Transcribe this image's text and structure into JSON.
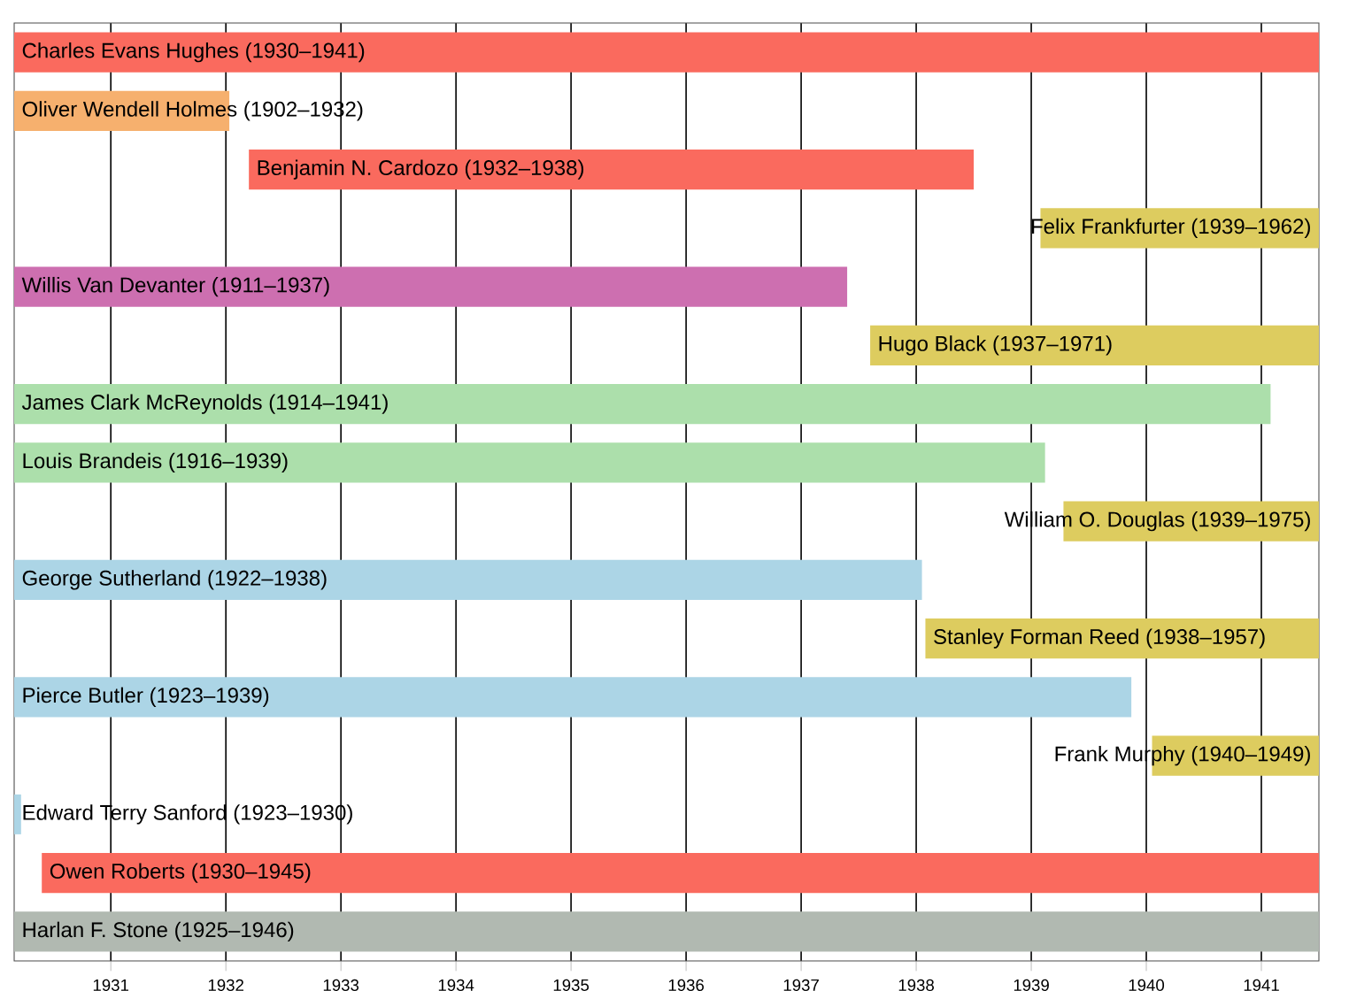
{
  "chart_data": {
    "type": "bar",
    "orientation": "horizontal",
    "categories": [
      "Charles Evans Hughes (1930–1941)",
      "Oliver Wendell Holmes (1902–1932)",
      "Benjamin N. Cardozo (1932–1938)",
      "Felix Frankfurter (1939–1962)",
      "Willis Van Devanter (1911–1937)",
      "Hugo Black (1937–1971)",
      "James Clark McReynolds (1914–1941)",
      "Louis Brandeis (1916–1939)",
      "William O. Douglas (1939–1975)",
      "George Sutherland (1922–1938)",
      "Stanley Forman Reed (1938–1957)",
      "Pierce Butler (1923–1939)",
      "Frank Murphy (1940–1949)",
      "Edward Terry Sanford (1923–1930)",
      "Owen Roberts (1930–1945)",
      "Harlan F. Stone (1925–1946)"
    ],
    "base": [
      1930.16,
      1930.16,
      1932.2,
      1939.08,
      1930.16,
      1937.6,
      1930.16,
      1930.16,
      1939.28,
      1930.16,
      1938.08,
      1930.16,
      1940.05,
      1930.16,
      1930.4,
      1930.16
    ],
    "values": [
      11.34,
      1.87,
      6.3,
      2.42,
      7.24,
      3.9,
      10.92,
      8.96,
      2.22,
      7.89,
      3.42,
      9.71,
      1.45,
      0.06,
      11.1,
      11.34
    ],
    "colors": [
      "#fa6a5e",
      "#f6b06e",
      "#fa6a5e",
      "#ddcc5f",
      "#cd6fb0",
      "#ddcc5f",
      "#acdfab",
      "#acdfab",
      "#ddcc5f",
      "#acd5e6",
      "#ddcc5f",
      "#acd5e6",
      "#ddcc5f",
      "#acd5e6",
      "#fa6a5e",
      "#b1b9b1"
    ],
    "xlim": [
      1930.16,
      1941.5
    ],
    "xticks": [
      1931,
      1932,
      1933,
      1934,
      1935,
      1936,
      1937,
      1938,
      1939,
      1940,
      1941
    ],
    "grid": "x"
  }
}
